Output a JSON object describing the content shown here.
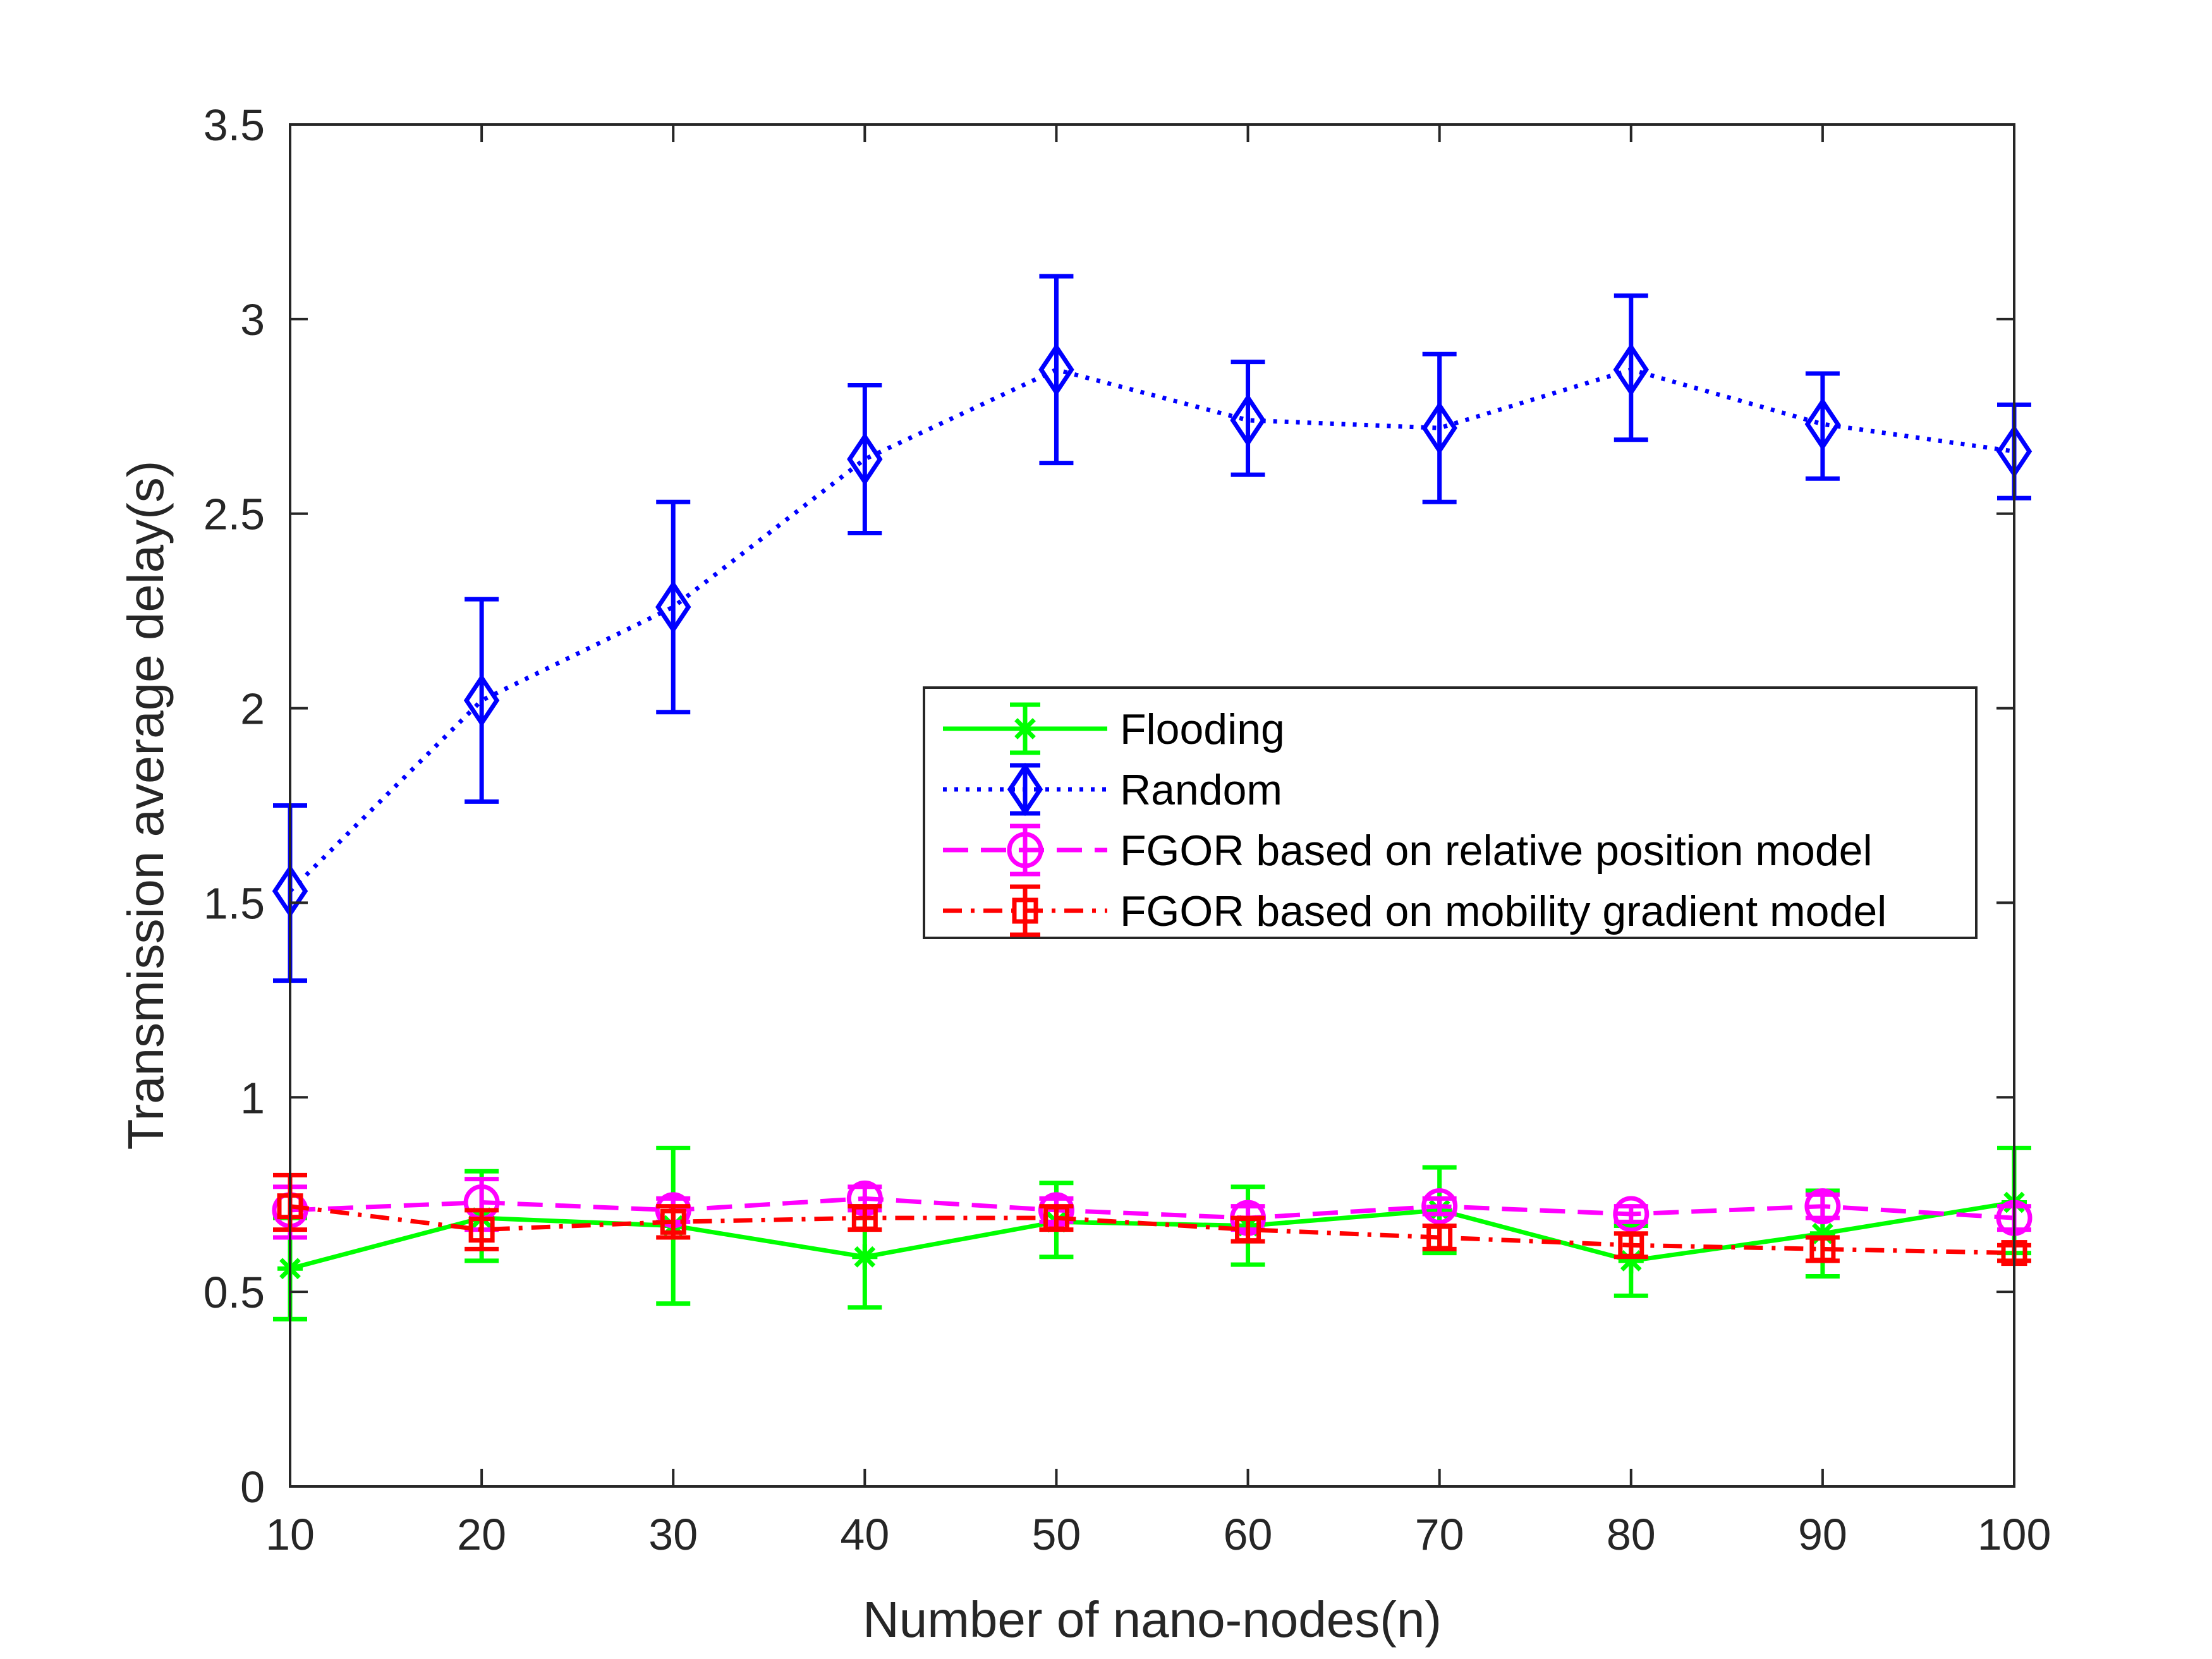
{
  "chart_data": {
    "type": "line",
    "xlabel": "Number of nano-nodes(n)",
    "ylabel": "Transmission average delay(s)",
    "xlim": [
      10,
      100
    ],
    "ylim": [
      0,
      3.5
    ],
    "xticks": [
      10,
      20,
      30,
      40,
      50,
      60,
      70,
      80,
      90,
      100
    ],
    "yticks": [
      0,
      0.5,
      1,
      1.5,
      2,
      2.5,
      3,
      3.5
    ],
    "xtick_labels": [
      "10",
      "20",
      "30",
      "40",
      "50",
      "60",
      "70",
      "80",
      "90",
      "100"
    ],
    "ytick_labels": [
      "0",
      "0.5",
      "1",
      "1.5",
      "2",
      "2.5",
      "3",
      "3.5"
    ],
    "grid": false,
    "legend_position": "center-right",
    "x": [
      10,
      20,
      30,
      40,
      50,
      60,
      70,
      80,
      90,
      100
    ],
    "series": [
      {
        "name": "Flooding",
        "color": "#00ff00",
        "line_style": "solid",
        "marker": "asterisk",
        "values": [
          0.56,
          0.69,
          0.67,
          0.59,
          0.68,
          0.67,
          0.71,
          0.58,
          0.65,
          0.73
        ],
        "err_low": [
          0.43,
          0.58,
          0.47,
          0.46,
          0.59,
          0.57,
          0.6,
          0.49,
          0.54,
          0.6
        ],
        "err_high": [
          0.69,
          0.81,
          0.87,
          0.72,
          0.78,
          0.77,
          0.82,
          0.67,
          0.76,
          0.87
        ]
      },
      {
        "name": "Random",
        "color": "#0000ff",
        "line_style": "dotted",
        "marker": "diamond",
        "values": [
          1.53,
          2.02,
          2.26,
          2.64,
          2.87,
          2.74,
          2.72,
          2.87,
          2.73,
          2.66
        ],
        "err_low": [
          1.3,
          1.76,
          1.99,
          2.45,
          2.63,
          2.6,
          2.53,
          2.69,
          2.59,
          2.54
        ],
        "err_high": [
          1.75,
          2.28,
          2.53,
          2.83,
          3.11,
          2.89,
          2.91,
          3.06,
          2.86,
          2.78
        ]
      },
      {
        "name": "FGOR based on relative position model",
        "color": "#ff00ff",
        "line_style": "dashed",
        "marker": "circle",
        "values": [
          0.71,
          0.73,
          0.71,
          0.74,
          0.71,
          0.69,
          0.72,
          0.7,
          0.72,
          0.69
        ],
        "err_low": [
          0.64,
          0.66,
          0.68,
          0.71,
          0.68,
          0.66,
          0.7,
          0.68,
          0.69,
          0.66
        ],
        "err_high": [
          0.77,
          0.79,
          0.74,
          0.77,
          0.74,
          0.72,
          0.74,
          0.72,
          0.75,
          0.72
        ]
      },
      {
        "name": "FGOR based on mobility gradient model",
        "color": "#ff0000",
        "line_style": "dashdot",
        "marker": "square",
        "values": [
          0.72,
          0.66,
          0.68,
          0.69,
          0.69,
          0.66,
          0.64,
          0.62,
          0.61,
          0.6
        ],
        "err_low": [
          0.66,
          0.61,
          0.64,
          0.66,
          0.66,
          0.63,
          0.61,
          0.59,
          0.58,
          0.58
        ],
        "err_high": [
          0.8,
          0.71,
          0.72,
          0.72,
          0.72,
          0.69,
          0.67,
          0.65,
          0.64,
          0.62
        ]
      }
    ]
  }
}
